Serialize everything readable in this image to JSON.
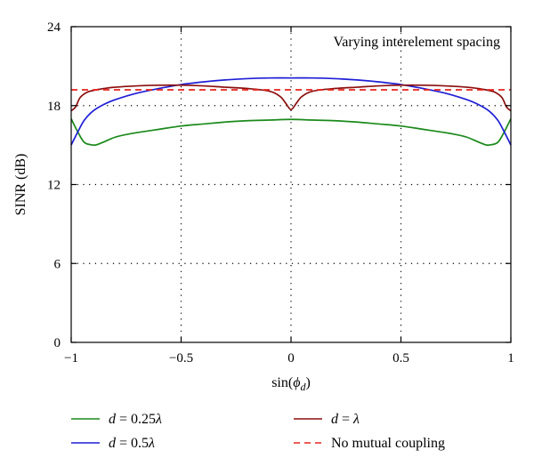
{
  "chart_data": {
    "type": "line",
    "title": "",
    "annotation": "Varying interelement spacing",
    "xlabel": "sin(φ_d)",
    "xlabel_parts": {
      "base": "sin(",
      "symbol": "ϕ",
      "sub": "d",
      "close": ")"
    },
    "ylabel": "SINR (dB)",
    "xlim": [
      -1,
      1
    ],
    "ylim": [
      0,
      24
    ],
    "xticks": [
      -1,
      -0.5,
      0,
      0.5,
      1
    ],
    "xtick_labels": [
      "−1",
      "−0.5",
      "0",
      "0.5",
      "1"
    ],
    "yticks": [
      0,
      6,
      12,
      18,
      24
    ],
    "ytick_labels": [
      "0",
      "6",
      "12",
      "18",
      "24"
    ],
    "grid": "dotted",
    "legend_position": "bottom",
    "series": [
      {
        "name": "d = 0.25λ",
        "legend": {
          "var": "d",
          "eq": " = 0.25",
          "lambda": "λ"
        },
        "color": "#1a8a1a",
        "dash": "",
        "x": [
          -1,
          -0.97,
          -0.94,
          -0.9,
          -0.88,
          -0.85,
          -0.8,
          -0.75,
          -0.7,
          -0.6,
          -0.5,
          -0.4,
          -0.3,
          -0.2,
          -0.1,
          0,
          0.1,
          0.2,
          0.3,
          0.4,
          0.5,
          0.6,
          0.7,
          0.75,
          0.8,
          0.85,
          0.88,
          0.9,
          0.94,
          0.97,
          1
        ],
        "y": [
          17.0,
          16.0,
          15.2,
          15.0,
          15.05,
          15.25,
          15.6,
          15.8,
          15.95,
          16.2,
          16.45,
          16.6,
          16.75,
          16.85,
          16.9,
          16.95,
          16.9,
          16.85,
          16.75,
          16.6,
          16.45,
          16.2,
          15.95,
          15.8,
          15.6,
          15.25,
          15.05,
          15.0,
          15.2,
          16.0,
          17.0
        ]
      },
      {
        "name": "d = 0.5λ",
        "legend": {
          "var": "d",
          "eq": " = 0.5",
          "lambda": "λ"
        },
        "color": "#1f1fd6",
        "dash": "",
        "x": [
          -1,
          -0.97,
          -0.94,
          -0.9,
          -0.85,
          -0.8,
          -0.7,
          -0.6,
          -0.5,
          -0.4,
          -0.3,
          -0.2,
          -0.1,
          0,
          0.1,
          0.2,
          0.3,
          0.4,
          0.5,
          0.6,
          0.7,
          0.8,
          0.85,
          0.9,
          0.94,
          0.97,
          1
        ],
        "y": [
          15.0,
          16.0,
          16.9,
          17.6,
          18.1,
          18.45,
          18.95,
          19.3,
          19.6,
          19.8,
          19.95,
          20.05,
          20.1,
          20.1,
          20.1,
          20.05,
          19.95,
          19.8,
          19.6,
          19.3,
          18.95,
          18.45,
          18.1,
          17.6,
          16.9,
          16.0,
          15.0
        ]
      },
      {
        "name": "d = λ",
        "legend": {
          "var": "d",
          "eq": " = ",
          "lambda": "λ"
        },
        "color": "#8b0f0f",
        "dash": "",
        "x": [
          -1,
          -0.98,
          -0.96,
          -0.93,
          -0.9,
          -0.85,
          -0.8,
          -0.7,
          -0.6,
          -0.5,
          -0.4,
          -0.3,
          -0.2,
          -0.1,
          -0.05,
          -0.025,
          0,
          0.025,
          0.05,
          0.1,
          0.2,
          0.3,
          0.4,
          0.5,
          0.6,
          0.7,
          0.8,
          0.85,
          0.9,
          0.93,
          0.96,
          0.98,
          1
        ],
        "y": [
          17.6,
          17.9,
          18.6,
          19.0,
          19.15,
          19.3,
          19.4,
          19.5,
          19.55,
          19.55,
          19.5,
          19.4,
          19.3,
          19.1,
          18.7,
          18.2,
          17.7,
          18.2,
          18.7,
          19.1,
          19.3,
          19.4,
          19.5,
          19.55,
          19.55,
          19.5,
          19.4,
          19.3,
          19.15,
          19.0,
          18.6,
          17.9,
          17.6
        ]
      },
      {
        "name": "No mutual coupling",
        "legend": {
          "text": "No mutual coupling"
        },
        "color": "#e8241f",
        "dash": "7,5",
        "x": [
          -1,
          1
        ],
        "y": [
          19.2,
          19.2
        ]
      }
    ]
  }
}
